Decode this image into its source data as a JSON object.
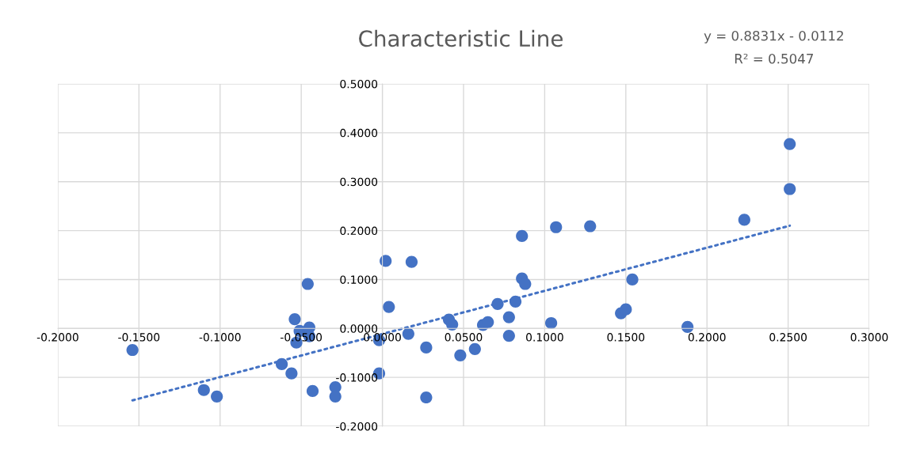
{
  "chart_data": {
    "type": "scatter",
    "title": "Characteristic Line",
    "annotations": [
      "y = 0.8831x - 0.0112",
      "R² = 0.5047"
    ],
    "series": [
      {
        "color": "#4472c4",
        "marker": "circle",
        "x": [
          -0.154,
          -0.11,
          -0.102,
          -0.062,
          -0.056,
          -0.054,
          -0.053,
          -0.051,
          -0.045,
          -0.045,
          -0.046,
          -0.043,
          -0.029,
          -0.029,
          -0.002,
          -0.002,
          0.002,
          0.004,
          0.016,
          0.018,
          0.027,
          0.027,
          0.041,
          0.043,
          0.048,
          0.057,
          0.062,
          0.065,
          0.071,
          0.078,
          0.078,
          0.082,
          0.086,
          0.086,
          0.088,
          0.104,
          0.107,
          0.128,
          0.147,
          0.15,
          0.154,
          0.188,
          0.223,
          0.251,
          0.251
        ],
        "values": [
          -0.044,
          -0.126,
          -0.139,
          -0.073,
          -0.092,
          0.019,
          -0.029,
          -0.005,
          0.002,
          -0.016,
          0.091,
          -0.128,
          -0.12,
          -0.139,
          -0.024,
          -0.092,
          0.138,
          0.044,
          -0.011,
          0.136,
          -0.039,
          -0.141,
          0.018,
          0.008,
          -0.055,
          -0.042,
          0.007,
          0.013,
          0.05,
          0.023,
          -0.015,
          0.055,
          0.189,
          0.102,
          0.091,
          0.011,
          0.207,
          0.209,
          0.031,
          0.039,
          0.1,
          0.003,
          0.222,
          0.377,
          0.285
        ]
      },
      {
        "type": "line",
        "color": "#4472c4",
        "line_style": "dotted",
        "x": [
          -0.154,
          0.251
        ],
        "values": [
          -0.147,
          0.21
        ]
      }
    ],
    "xlim": [
      -0.2,
      0.3
    ],
    "xticks": [
      {
        "value": -0.2,
        "label": "-0.2000"
      },
      {
        "value": -0.15,
        "label": "-0.1500"
      },
      {
        "value": -0.1,
        "label": "-0.1000"
      },
      {
        "value": -0.05,
        "label": "-0.0500"
      },
      {
        "value": 0,
        "label": "0.0000"
      },
      {
        "value": 0.05,
        "label": "0.0500"
      },
      {
        "value": 0.1,
        "label": "0.1000"
      },
      {
        "value": 0.15,
        "label": "0.1500"
      },
      {
        "value": 0.2,
        "label": "0.2000"
      },
      {
        "value": 0.25,
        "label": "0.2500"
      },
      {
        "value": 0.3,
        "label": "0.3000"
      }
    ],
    "ylim": [
      -0.2,
      0.5
    ],
    "yticks": [
      {
        "value": -0.2,
        "label": "-0.2000"
      },
      {
        "value": -0.1,
        "label": "-0.1000"
      },
      {
        "value": 0,
        "label": "0.0000"
      },
      {
        "value": 0.1,
        "label": "0.1000"
      },
      {
        "value": 0.2,
        "label": "0.2000"
      },
      {
        "value": 0.3,
        "label": "0.3000"
      },
      {
        "value": 0.4,
        "label": "0.4000"
      },
      {
        "value": 0.5,
        "label": "0.5000"
      }
    ],
    "grid": true
  }
}
